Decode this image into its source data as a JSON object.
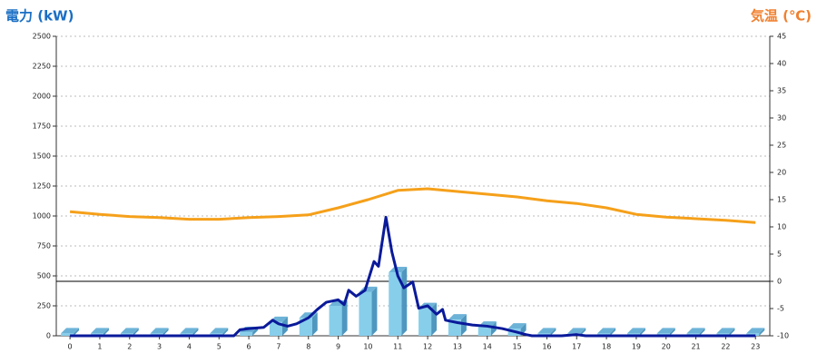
{
  "chart_data": {
    "type": "bar-line",
    "y_label": "電力 (kW)",
    "y2_label": "気温 (℃)",
    "categories": [
      "0",
      "1",
      "2",
      "3",
      "4",
      "5",
      "6",
      "7",
      "8",
      "9",
      "10",
      "11",
      "12",
      "13",
      "14",
      "15",
      "16",
      "17",
      "18",
      "19",
      "20",
      "21",
      "22",
      "23"
    ],
    "xlim": [
      -0.46,
      23.48
    ],
    "ylim": [
      0,
      2500
    ],
    "yticks": [
      0,
      250,
      500,
      750,
      1000,
      1250,
      1500,
      1750,
      2000,
      2250,
      2500
    ],
    "y2lim": [
      -10,
      45
    ],
    "y2ticks": [
      -10,
      -5,
      0,
      5,
      10,
      15,
      20,
      25,
      30,
      35,
      40,
      45
    ],
    "grid": true,
    "series": [
      {
        "type": "bar",
        "color": "#87ceeb",
        "values": [
          20,
          20,
          20,
          20,
          20,
          20,
          30,
          115,
          150,
          250,
          365,
          530,
          230,
          135,
          75,
          60,
          20,
          20,
          20,
          20,
          20,
          20,
          20,
          20
        ]
      },
      {
        "type": "line",
        "color": "#0a1a9a",
        "x": [
          0,
          5.5,
          5.7,
          6,
          6.5,
          6.8,
          7,
          7.3,
          7.6,
          8,
          8.3,
          8.6,
          9,
          9.2,
          9.35,
          9.6,
          9.9,
          10.2,
          10.35,
          10.6,
          10.8,
          11,
          11.2,
          11.5,
          11.7,
          12,
          12.3,
          12.5,
          12.6,
          13,
          13.5,
          14,
          14.5,
          15,
          15.3,
          15.5,
          16.5,
          17,
          17.3,
          23
        ],
        "values": [
          0,
          0,
          50,
          60,
          70,
          130,
          100,
          80,
          100,
          150,
          220,
          280,
          300,
          260,
          380,
          330,
          380,
          620,
          580,
          990,
          700,
          500,
          400,
          450,
          230,
          250,
          180,
          220,
          130,
          110,
          90,
          80,
          60,
          30,
          10,
          0,
          0,
          10,
          0,
          0
        ]
      },
      {
        "type": "line",
        "axis": "y2",
        "color": "#f5a01a",
        "values": [
          12.8,
          12.3,
          11.9,
          11.7,
          11.4,
          11.4,
          11.7,
          11.9,
          12.2,
          13.5,
          15,
          16.7,
          17,
          16.5,
          16,
          15.5,
          14.8,
          14.3,
          13.5,
          12.3,
          11.8,
          11.5,
          11.2,
          10.8
        ]
      }
    ]
  }
}
